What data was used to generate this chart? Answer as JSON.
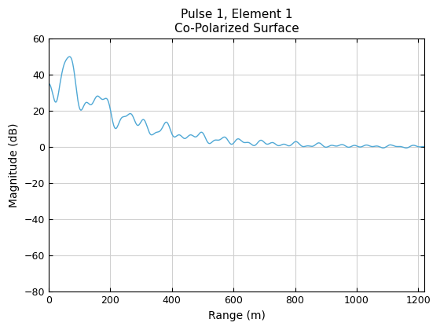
{
  "title_line1": "Pulse 1, Element 1",
  "title_line2": "Co-Polarized Surface",
  "xlabel": "Range (m)",
  "ylabel": "Magnitude (dB)",
  "xlim": [
    0,
    1220
  ],
  "ylim": [
    -80,
    60
  ],
  "xticks": [
    0,
    200,
    400,
    600,
    800,
    1000,
    1200
  ],
  "yticks": [
    -80,
    -60,
    -40,
    -20,
    0,
    20,
    40,
    60
  ],
  "line_color": "#4FA8D5",
  "line_width": 1.0,
  "grid_color": "#D0D0D0",
  "bg_color": "#FFFFFF",
  "title_fontsize": 11,
  "label_fontsize": 10
}
